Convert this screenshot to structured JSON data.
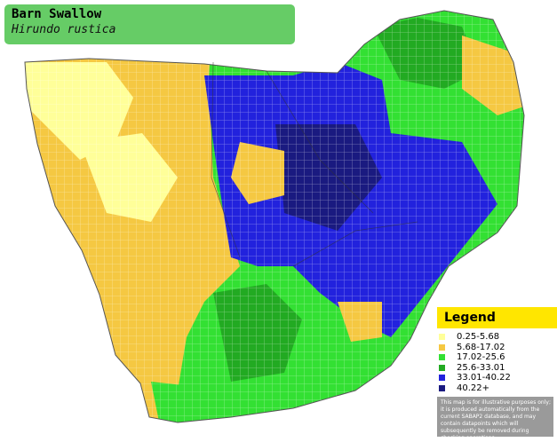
{
  "header": {
    "title": "Barn Swallow",
    "subtitle": "Hirundo rustica"
  },
  "legend": {
    "title": "Legend",
    "items": [
      {
        "label": "0.25-5.68",
        "color": "#ffff99"
      },
      {
        "label": "5.68-17.02",
        "color": "#f5c842"
      },
      {
        "label": "17.02-25.6",
        "color": "#33e033"
      },
      {
        "label": "25.6-33.01",
        "color": "#22aa22"
      },
      {
        "label": "33.01-40.22",
        "color": "#2222dd"
      },
      {
        "label": "40.22+",
        "color": "#1a1a80"
      }
    ],
    "note": "This map is for illustrative purposes only; it is produced automatically from the current SABAP2 database, and may contain datapoints which will subsequently be removed during checking operations."
  }
}
